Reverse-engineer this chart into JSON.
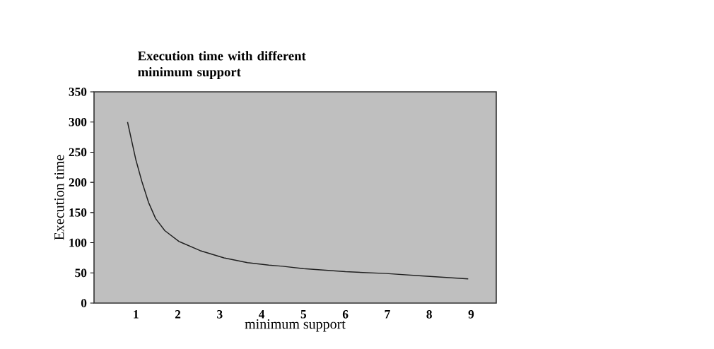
{
  "chart_data": {
    "type": "line",
    "title": "Execution time with different minimum support",
    "xlabel": "minimum support",
    "ylabel": "Execution time",
    "x": [
      0.8,
      1.0,
      1.14,
      1.3,
      1.47,
      1.69,
      2.03,
      2.53,
      3.1,
      3.66,
      4.17,
      4.5,
      5.0,
      6.0,
      6.97,
      7.82,
      8.93
    ],
    "values": [
      300,
      237,
      202,
      167,
      140,
      120,
      102,
      87,
      75,
      67,
      63,
      61,
      57,
      52,
      49,
      45,
      40
    ],
    "color": "#202020",
    "marker": "none",
    "xlim": [
      0,
      9.6
    ],
    "ylim": [
      0,
      350
    ],
    "xticks": [
      1,
      2,
      3,
      4,
      5,
      6,
      7,
      8,
      9
    ],
    "yticks": [
      0,
      50,
      100,
      150,
      200,
      250,
      300,
      350
    ]
  }
}
